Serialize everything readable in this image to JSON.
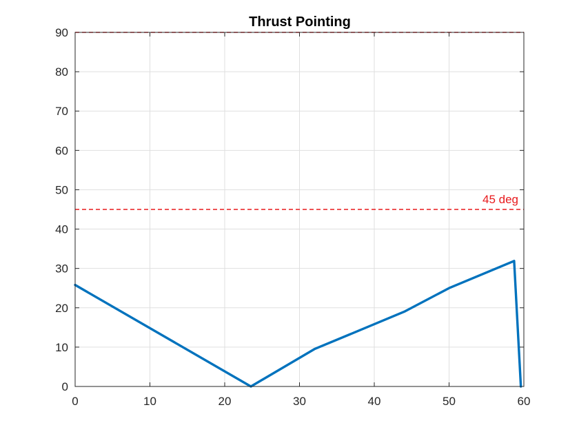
{
  "chart_data": {
    "type": "line",
    "title": "Thrust Pointing",
    "xlabel": "",
    "ylabel": "",
    "xlim": [
      0,
      60
    ],
    "ylim": [
      0,
      90
    ],
    "xticks": [
      "0",
      "10",
      "20",
      "30",
      "40",
      "50",
      "60"
    ],
    "yticks": [
      "0",
      "10",
      "20",
      "30",
      "40",
      "50",
      "60",
      "70",
      "80",
      "90"
    ],
    "grid": true,
    "series": [
      {
        "color": "#0072BD",
        "x": [
          0,
          23.5,
          32,
          44,
          50,
          58.7,
          59.6
        ],
        "y": [
          25.8,
          0,
          9.5,
          19,
          25,
          31.9,
          0
        ]
      }
    ],
    "reference_lines": [
      {
        "y": 45,
        "label": "45 deg",
        "color": "#E8191C",
        "style": "dashed"
      },
      {
        "y": 90,
        "label": "",
        "color": "#E8191C",
        "style": "dashed"
      }
    ]
  }
}
